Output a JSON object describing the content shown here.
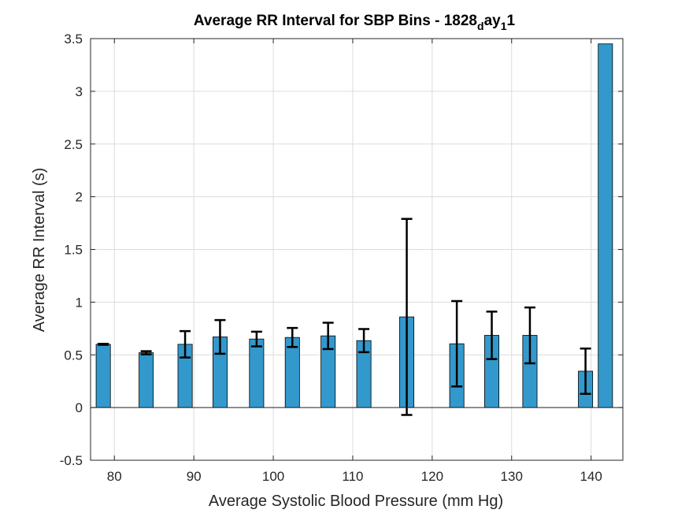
{
  "chart_data": {
    "type": "bar",
    "title": {
      "main": "Average RR Interval for SBP Bins - 1828",
      "sub1": "d",
      "mid": "ay",
      "sub2": "1",
      "end": "1"
    },
    "xlabel": "Average Systolic Blood Pressure (mm Hg)",
    "ylabel": "Average RR Interval (s)",
    "xlim": [
      77,
      144
    ],
    "ylim": [
      -0.5,
      3.5
    ],
    "xticks": [
      80,
      90,
      100,
      110,
      120,
      130,
      140
    ],
    "yticks": [
      -0.5,
      0,
      0.5,
      1,
      1.5,
      2,
      2.5,
      3,
      3.5
    ],
    "ytick_labels": [
      "-0.5",
      "0",
      "0.5",
      "1",
      "1.5",
      "2",
      "2.5",
      "3",
      "3.5"
    ],
    "bar_width": 1.8,
    "grid": true,
    "bar_color": "#3399cc",
    "bars": [
      {
        "x": 78.6,
        "value": 0.6,
        "err": 0.005
      },
      {
        "x": 84.0,
        "value": 0.52,
        "err": 0.015
      },
      {
        "x": 88.9,
        "value": 0.6,
        "err": 0.125
      },
      {
        "x": 93.3,
        "value": 0.67,
        "err": 0.16
      },
      {
        "x": 97.9,
        "value": 0.65,
        "err": 0.07
      },
      {
        "x": 102.4,
        "value": 0.665,
        "err": 0.09
      },
      {
        "x": 106.9,
        "value": 0.68,
        "err": 0.125
      },
      {
        "x": 111.4,
        "value": 0.635,
        "err": 0.11
      },
      {
        "x": 116.8,
        "value": 0.86,
        "err": 0.93
      },
      {
        "x": 123.1,
        "value": 0.605,
        "err": 0.405
      },
      {
        "x": 127.5,
        "value": 0.685,
        "err": 0.225
      },
      {
        "x": 132.3,
        "value": 0.685,
        "err": 0.265
      },
      {
        "x": 139.3,
        "value": 0.345,
        "err": 0.215
      },
      {
        "x": 141.8,
        "value": 3.45,
        "err": 0.0
      }
    ]
  }
}
